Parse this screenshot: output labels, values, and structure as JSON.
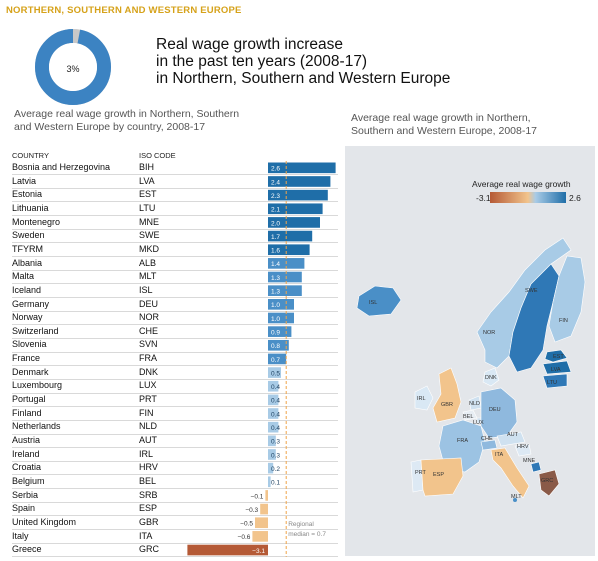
{
  "section_title": "NORTHERN, SOUTHERN AND WESTERN EUROPE",
  "hero": {
    "donut_value": "3%",
    "title_lines": [
      "Real wage growth increase",
      "in the past ten years (2008-17)",
      "in Northern, Southern and Western Europe"
    ]
  },
  "left_subtitle_lines": [
    "Average real wage growth in Northern, Southern",
    "and Western Europe  by country, 2008-17"
  ],
  "right_subtitle_lines": [
    "Average real wage growth in Northern,",
    "Southern and Western Europe, 2008-17"
  ],
  "table": {
    "col_country": "COUNTRY",
    "col_iso": "ISO CODE"
  },
  "chart_data": {
    "type": "bar",
    "orientation": "horizontal",
    "categories": [
      "Bosnia and Herzegovina",
      "Latvia",
      "Estonia",
      "Lithuania",
      "Montenegro",
      "Sweden",
      "TFYRM",
      "Albania",
      "Malta",
      "Iceland",
      "Germany",
      "Norway",
      "Switzerland",
      "Slovenia",
      "France",
      "Denmark",
      "Luxembourg",
      "Portugal",
      "Finland",
      "Netherlands",
      "Austria",
      "Ireland",
      "Croatia",
      "Belgium",
      "Serbia",
      "Spain",
      "United Kingdom",
      "Italy",
      "Greece"
    ],
    "iso": [
      "BIH",
      "LVA",
      "EST",
      "LTU",
      "MNE",
      "SWE",
      "MKD",
      "ALB",
      "MLT",
      "ISL",
      "DEU",
      "NOR",
      "CHE",
      "SVN",
      "FRA",
      "DNK",
      "LUX",
      "PRT",
      "FIN",
      "NLD",
      "AUT",
      "IRL",
      "HRV",
      "BEL",
      "SRB",
      "ESP",
      "GBR",
      "ITA",
      "GRC"
    ],
    "values": [
      2.6,
      2.4,
      2.3,
      2.1,
      2.0,
      1.7,
      1.6,
      1.4,
      1.3,
      1.3,
      1.0,
      1.0,
      0.9,
      0.8,
      0.7,
      0.5,
      0.4,
      0.4,
      0.4,
      0.4,
      0.3,
      0.3,
      0.2,
      0.1,
      -0.1,
      -0.3,
      -0.5,
      -0.6,
      -3.1
    ],
    "value_labels": [
      "2.6",
      "2.4",
      "2.3",
      "2.1",
      "2.0",
      "1.7",
      "1.6",
      "1.4",
      "1.3",
      "1.3",
      "1.0",
      "1.0",
      "0.9",
      "0.8",
      "0.7",
      "0.5",
      "0.4",
      "0.4",
      "0.4",
      "0.4",
      "0.3",
      "0.3",
      "0.2",
      "0.1",
      "−0.1",
      "−0.3",
      "−0.5",
      "−0.6",
      "−3.1"
    ],
    "xlim": [
      -3.1,
      2.6
    ],
    "reference_line": {
      "value": 0.7,
      "label_lines": [
        "Regional",
        "median = 0.7"
      ]
    }
  },
  "map": {
    "legend_title": "Average real wage growth",
    "legend_min": "-3.1",
    "legend_max": "2.6",
    "country_labels": [
      "ISL",
      "SWE",
      "FIN",
      "NOR",
      "EST",
      "LVA",
      "LTU",
      "DNK",
      "IRL",
      "GBR",
      "NLD",
      "DEU",
      "LUX",
      "BEL",
      "FRA",
      "CHE",
      "AUT",
      "HRV",
      "ITA",
      "PRT",
      "ESP",
      "MNE",
      "GRC",
      "MLT"
    ]
  },
  "colors": {
    "section_title": "#d6a21a",
    "donut_fill": "#3c83c2",
    "donut_remainder": "#c8c8c8",
    "bar_dark": "#1f6ea8",
    "bar_mid": "#4a8fc7",
    "bar_light": "#a8cbe6",
    "bar_negative_light": "#f2c48c",
    "bar_negative_dark": "#b55a36",
    "median_line": "#f0a44a",
    "map_bg": "#e3e6ea"
  }
}
